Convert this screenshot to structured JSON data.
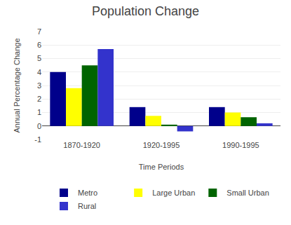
{
  "chart_data": {
    "type": "bar",
    "title": "Population Change",
    "xlabel": "Time Periods",
    "ylabel": "Annual Percentage Change",
    "categories": [
      "1870-1920",
      "1920-1995",
      "1990-1995"
    ],
    "series": [
      {
        "name": "Metro",
        "color": "#00008B",
        "values": [
          4.0,
          1.4,
          1.4
        ]
      },
      {
        "name": "Large Urban",
        "color": "#FFFF00",
        "values": [
          2.8,
          0.75,
          1.0
        ]
      },
      {
        "name": "Small Urban",
        "color": "#006400",
        "values": [
          4.5,
          0.1,
          0.65
        ]
      },
      {
        "name": "Rural",
        "color": "#3333CC",
        "values": [
          5.7,
          -0.4,
          0.2
        ]
      }
    ],
    "ylim": [
      -1,
      7
    ],
    "yticks": [
      -1,
      0,
      1,
      2,
      3,
      4,
      5,
      6,
      7
    ],
    "grid": true,
    "legend": "bottom"
  }
}
